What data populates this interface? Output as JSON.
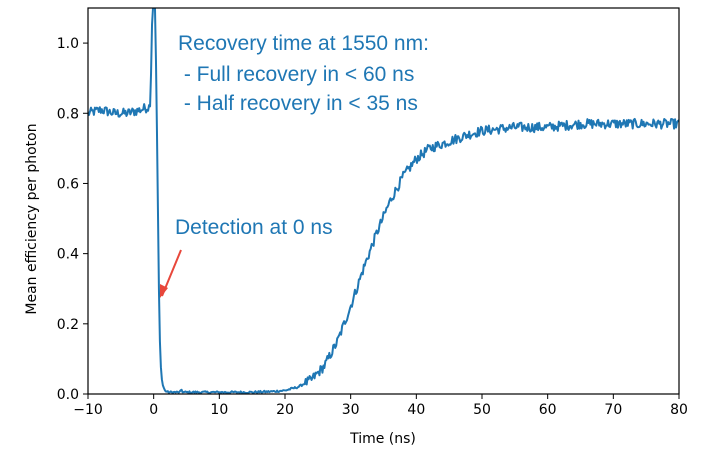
{
  "chart_data": {
    "type": "line",
    "title": "",
    "xlabel": "Time (ns)",
    "ylabel": "Mean efficiency per photon",
    "xlim": [
      -10,
      80
    ],
    "ylim": [
      0,
      1.1
    ],
    "x_ticks": [
      "−10",
      "0",
      "10",
      "20",
      "30",
      "40",
      "50",
      "60",
      "70",
      "80"
    ],
    "y_ticks": [
      "0.0",
      "0.2",
      "0.4",
      "0.6",
      "0.8",
      "1.0"
    ],
    "grid": false,
    "series": [
      {
        "color": "#1f77b4",
        "x": [
          -10,
          -8,
          -6,
          -4,
          -2,
          -0.5,
          -0.2,
          0,
          0.2,
          0.4,
          0.6,
          0.8,
          1.0,
          1.3,
          1.7,
          2.2,
          3,
          4,
          4.2,
          4.5,
          5,
          10,
          15,
          18,
          20,
          22,
          24,
          26,
          28,
          30,
          32,
          34,
          36,
          38,
          40,
          42,
          45,
          48,
          50,
          55,
          60,
          65,
          70,
          75,
          80
        ],
        "y": [
          0.8,
          0.81,
          0.8,
          0.8,
          0.81,
          0.82,
          1.1,
          1.1,
          1.1,
          0.9,
          0.6,
          0.3,
          0.1,
          0.03,
          0.01,
          0.005,
          0.005,
          0.005,
          0.01,
          0.005,
          0.005,
          0.005,
          0.005,
          0.007,
          0.01,
          0.02,
          0.04,
          0.08,
          0.15,
          0.25,
          0.36,
          0.46,
          0.55,
          0.62,
          0.67,
          0.7,
          0.72,
          0.74,
          0.75,
          0.76,
          0.76,
          0.77,
          0.77,
          0.77,
          0.77
        ]
      }
    ],
    "annotations": {
      "recovery_title": "Recovery time at 1550 nm:",
      "full_recovery": " - Full recovery in < 60 ns",
      "half_recovery": " - Half recovery in < 35 ns",
      "detection": "Detection at 0 ns",
      "annotation_color": "#1f77b4",
      "arrow_color": "#e8473b"
    }
  }
}
